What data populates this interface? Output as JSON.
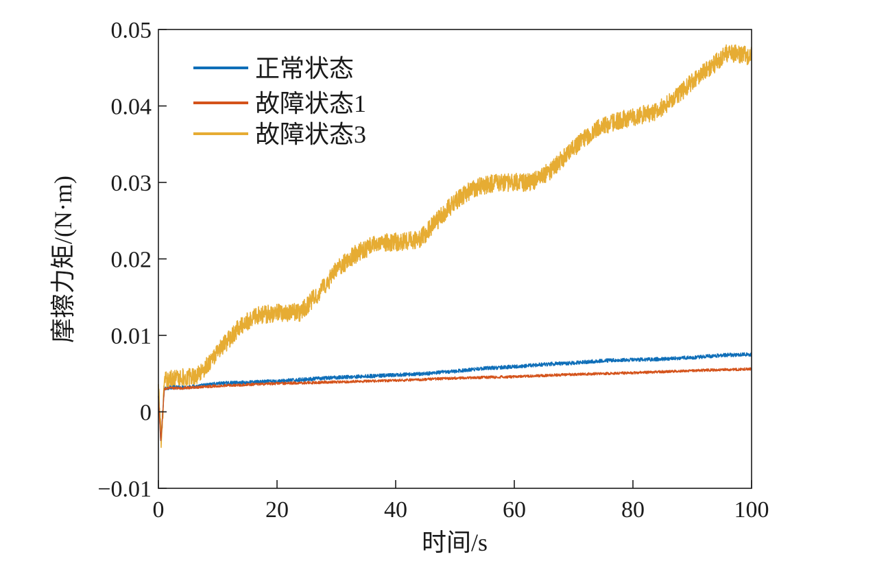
{
  "chart_data": {
    "type": "line",
    "xlabel": "时间/s",
    "ylabel": "摩擦力矩/(N·m)",
    "xlim": [
      0,
      100
    ],
    "ylim": [
      -0.01,
      0.05
    ],
    "x_ticks": [
      0,
      20,
      40,
      60,
      80,
      100
    ],
    "x_tick_labels": [
      "0",
      "20",
      "40",
      "60",
      "80",
      "100"
    ],
    "y_ticks": [
      -0.01,
      0,
      0.01,
      0.02,
      0.03,
      0.04,
      0.05
    ],
    "y_tick_labels": [
      "−0.01",
      "0",
      "0.01",
      "0.02",
      "0.03",
      "0.04",
      "0.05"
    ],
    "legend_position": "top-left",
    "grid": false,
    "series": [
      {
        "name": "正常状态",
        "color": "#0e6eb8",
        "noise": 0.00025,
        "x": [
          0,
          0.4,
          1,
          2,
          4,
          6,
          8,
          10,
          20,
          30,
          40,
          45,
          50,
          55,
          60,
          65,
          70,
          75,
          80,
          85,
          90,
          95,
          100
        ],
        "y": [
          0.002,
          -0.004,
          0.003,
          0.0032,
          0.0032,
          0.0033,
          0.0035,
          0.0037,
          0.004,
          0.0045,
          0.0048,
          0.005,
          0.0053,
          0.0057,
          0.0059,
          0.0062,
          0.0064,
          0.0067,
          0.0068,
          0.0069,
          0.0071,
          0.0074,
          0.0075
        ]
      },
      {
        "name": "故障状态1",
        "color": "#d4531b",
        "noise": 0.00018,
        "x": [
          0,
          0.4,
          1,
          2,
          4,
          6,
          8,
          10,
          20,
          30,
          40,
          50,
          60,
          70,
          80,
          90,
          100
        ],
        "y": [
          0.002,
          -0.004,
          0.003,
          0.0031,
          0.0031,
          0.0032,
          0.0033,
          0.0034,
          0.0037,
          0.0039,
          0.0041,
          0.0044,
          0.0046,
          0.0049,
          0.0051,
          0.0054,
          0.0056
        ]
      },
      {
        "name": "故障状态3",
        "color": "#e6ac33",
        "noise": 0.0012,
        "x": [
          0,
          0.5,
          1,
          3,
          5,
          7,
          10,
          13,
          16,
          20,
          24,
          27,
          30,
          33,
          37,
          40,
          44,
          47,
          50,
          53,
          57,
          60,
          63,
          66,
          70,
          74,
          77,
          80,
          84,
          87,
          90,
          93,
          96,
          100
        ],
        "y": [
          0.003,
          -0.004,
          0.004,
          0.0045,
          0.0045,
          0.005,
          0.0078,
          0.0105,
          0.0125,
          0.013,
          0.013,
          0.0155,
          0.0185,
          0.0205,
          0.0222,
          0.0222,
          0.0225,
          0.025,
          0.0275,
          0.0292,
          0.03,
          0.03,
          0.03,
          0.0315,
          0.0345,
          0.037,
          0.038,
          0.0385,
          0.0393,
          0.041,
          0.0432,
          0.045,
          0.047,
          0.0465
        ]
      }
    ]
  }
}
